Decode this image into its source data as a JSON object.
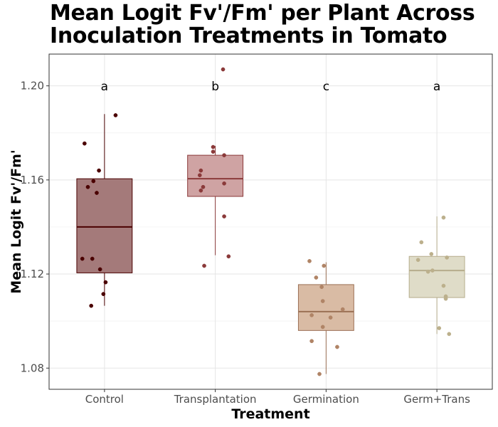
{
  "chart_data": {
    "type": "box",
    "title_lines": [
      "Mean Logit Fv'/Fm' per Plant Across",
      "Inoculation Treatments in Tomato"
    ],
    "xlabel": "Treatment",
    "ylabel": "Mean Logit Fv'/Fm'",
    "ylim": [
      1.071,
      1.2135
    ],
    "yticks": [
      1.08,
      1.12,
      1.16,
      1.2
    ],
    "ytick_labels": [
      "1.08",
      "1.12",
      "1.16",
      "1.20"
    ],
    "grid": true,
    "categories": [
      "Control",
      "Transplantation",
      "Germination",
      "Germ+Trans"
    ],
    "groups": [
      {
        "name": "Control",
        "letter": "a",
        "q1": 1.1205,
        "median": 1.14,
        "q3": 1.1605,
        "whisker_low": 1.1065,
        "whisker_high": 1.188,
        "fill": "#a47a7a",
        "stroke": "#4a0000",
        "point_color": "#4a0000",
        "points": [
          {
            "x_jitter": -0.18,
            "y": 1.1755
          },
          {
            "x_jitter": -0.05,
            "y": 1.164
          },
          {
            "x_jitter": -0.1,
            "y": 1.1595
          },
          {
            "x_jitter": -0.15,
            "y": 1.157
          },
          {
            "x_jitter": -0.07,
            "y": 1.1545
          },
          {
            "x_jitter": 0.1,
            "y": 1.1875
          },
          {
            "x_jitter": -0.2,
            "y": 1.1265
          },
          {
            "x_jitter": -0.11,
            "y": 1.1265
          },
          {
            "x_jitter": -0.04,
            "y": 1.122
          },
          {
            "x_jitter": 0.01,
            "y": 1.1165
          },
          {
            "x_jitter": -0.01,
            "y": 1.1115
          },
          {
            "x_jitter": -0.12,
            "y": 1.1065
          }
        ]
      },
      {
        "name": "Transplantation",
        "letter": "b",
        "q1": 1.153,
        "median": 1.1605,
        "q3": 1.1705,
        "whisker_low": 1.128,
        "whisker_high": 1.1745,
        "fill": "#cfa3a3",
        "stroke": "#8b3a3a",
        "point_color": "#8b3a3a",
        "points": [
          {
            "x_jitter": -0.02,
            "y": 1.174
          },
          {
            "x_jitter": -0.02,
            "y": 1.172
          },
          {
            "x_jitter": 0.08,
            "y": 1.1705
          },
          {
            "x_jitter": 0.07,
            "y": 1.207
          },
          {
            "x_jitter": -0.13,
            "y": 1.164
          },
          {
            "x_jitter": -0.14,
            "y": 1.162
          },
          {
            "x_jitter": 0.08,
            "y": 1.1585
          },
          {
            "x_jitter": -0.11,
            "y": 1.157
          },
          {
            "x_jitter": -0.13,
            "y": 1.1555
          },
          {
            "x_jitter": 0.08,
            "y": 1.1445
          },
          {
            "x_jitter": 0.12,
            "y": 1.1275
          },
          {
            "x_jitter": -0.1,
            "y": 1.1235
          }
        ]
      },
      {
        "name": "Germination",
        "letter": "c",
        "q1": 1.096,
        "median": 1.104,
        "q3": 1.1155,
        "whisker_low": 1.0775,
        "whisker_high": 1.125,
        "fill": "#d9bba4",
        "stroke": "#9b7055",
        "point_color": "#b08466",
        "points": [
          {
            "x_jitter": -0.15,
            "y": 1.1255
          },
          {
            "x_jitter": -0.02,
            "y": 1.1235
          },
          {
            "x_jitter": -0.09,
            "y": 1.1185
          },
          {
            "x_jitter": -0.04,
            "y": 1.1145
          },
          {
            "x_jitter": -0.03,
            "y": 1.1085
          },
          {
            "x_jitter": 0.15,
            "y": 1.105
          },
          {
            "x_jitter": -0.13,
            "y": 1.1025
          },
          {
            "x_jitter": 0.04,
            "y": 1.1015
          },
          {
            "x_jitter": -0.03,
            "y": 1.0975
          },
          {
            "x_jitter": -0.13,
            "y": 1.0915
          },
          {
            "x_jitter": 0.1,
            "y": 1.089
          },
          {
            "x_jitter": -0.06,
            "y": 1.0775
          }
        ]
      },
      {
        "name": "Germ+Trans",
        "letter": "a",
        "q1": 1.11,
        "median": 1.1215,
        "q3": 1.1275,
        "whisker_low": 1.0945,
        "whisker_high": 1.1445,
        "fill": "#dfdcc8",
        "stroke": "#b6ad8c",
        "point_color": "#bcb08c",
        "points": [
          {
            "x_jitter": 0.06,
            "y": 1.144
          },
          {
            "x_jitter": -0.14,
            "y": 1.1335
          },
          {
            "x_jitter": -0.05,
            "y": 1.1285
          },
          {
            "x_jitter": -0.17,
            "y": 1.126
          },
          {
            "x_jitter": 0.09,
            "y": 1.127
          },
          {
            "x_jitter": -0.08,
            "y": 1.121
          },
          {
            "x_jitter": -0.04,
            "y": 1.1215
          },
          {
            "x_jitter": 0.06,
            "y": 1.115
          },
          {
            "x_jitter": 0.08,
            "y": 1.1105
          },
          {
            "x_jitter": 0.08,
            "y": 1.1095
          },
          {
            "x_jitter": 0.02,
            "y": 1.097
          },
          {
            "x_jitter": 0.11,
            "y": 1.0945
          }
        ]
      }
    ]
  }
}
